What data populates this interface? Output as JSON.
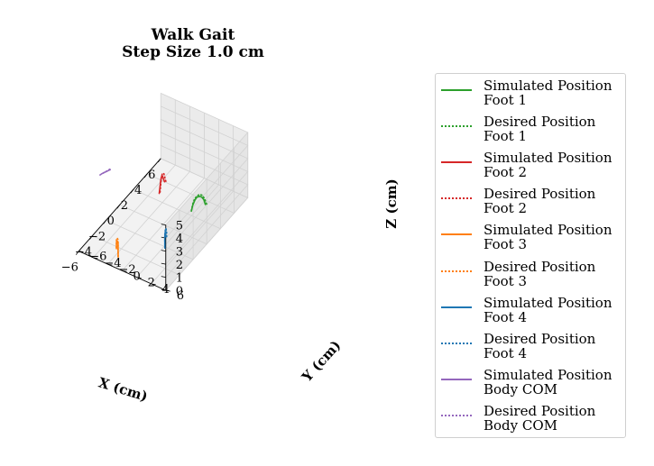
{
  "chart_data": {
    "type": "line",
    "projection": "3d",
    "title": "Walk Gait\nStep Size 1.0 cm",
    "title_lines": [
      "Walk Gait",
      "Step Size 1.0 cm"
    ],
    "xlabel": "X (cm)",
    "ylabel": "Y (cm)",
    "zlabel": "Z (cm)",
    "xlim": [
      -6,
      6
    ],
    "ylim": [
      -6,
      6
    ],
    "zlim": [
      0,
      5
    ],
    "xticks": [
      "−6",
      "−4",
      "−2",
      "0",
      "2",
      "4",
      "6"
    ],
    "yticks": [
      "−6",
      "−4",
      "−2",
      "0",
      "2",
      "4",
      "6"
    ],
    "zticks": [
      "0",
      "1",
      "2",
      "3",
      "4",
      "5"
    ],
    "grid": true,
    "legend_position": "right",
    "series": [
      {
        "name": "Simulated Position\nFoot 1",
        "color": "#2ca02c",
        "style": "solid",
        "x": [
          3.6,
          3.5,
          3.3,
          3.1,
          2.9,
          2.7,
          2.5,
          2.4
        ],
        "y": [
          2.4,
          2.3,
          2.2,
          2.1,
          1.9,
          1.8,
          1.7,
          1.6
        ],
        "z": [
          0.0,
          0.4,
          0.7,
          0.85,
          0.85,
          0.7,
          0.4,
          0.0
        ]
      },
      {
        "name": "Desired Position\nFoot 1",
        "color": "#2ca02c",
        "style": "dotted",
        "x": [
          3.7,
          3.5,
          3.3,
          3.1,
          2.9,
          2.7,
          2.5,
          2.4
        ],
        "y": [
          2.5,
          2.4,
          2.3,
          2.1,
          2.0,
          1.8,
          1.7,
          1.6
        ],
        "z": [
          0.0,
          0.5,
          0.85,
          1.0,
          1.0,
          0.85,
          0.5,
          0.0
        ]
      },
      {
        "name": "Simulated Position\nFoot 2",
        "color": "#d62728",
        "style": "solid",
        "x": [
          4.0,
          3.8,
          3.6,
          3.4,
          3.2,
          3.0,
          2.8,
          2.7
        ],
        "y": [
          -3.6,
          -3.6,
          -3.5,
          -3.4,
          -3.3,
          -3.2,
          -3.1,
          -3.1
        ],
        "z": [
          0.0,
          0.4,
          0.7,
          0.85,
          0.85,
          0.7,
          0.4,
          0.0
        ]
      },
      {
        "name": "Desired Position\nFoot 2",
        "color": "#d62728",
        "style": "dotted",
        "x": [
          4.1,
          3.9,
          3.7,
          3.5,
          3.3,
          3.1,
          2.9,
          2.7
        ],
        "y": [
          -3.5,
          -3.5,
          -3.4,
          -3.4,
          -3.3,
          -3.2,
          -3.1,
          -3.0
        ],
        "z": [
          0.0,
          0.5,
          0.85,
          1.0,
          1.0,
          0.85,
          0.5,
          0.0
        ]
      },
      {
        "name": "Simulated Position\nFoot 3",
        "color": "#ff7f0e",
        "style": "solid",
        "x": [
          -4.2,
          -4.3,
          -4.4,
          -4.5,
          -4.6,
          -4.7,
          -4.8,
          -4.9
        ],
        "y": [
          -2.5,
          -2.4,
          -2.3,
          -2.1,
          -1.9,
          -1.8,
          -1.7,
          -1.6
        ],
        "z": [
          0.0,
          0.4,
          0.7,
          0.85,
          0.85,
          0.7,
          0.4,
          0.0
        ]
      },
      {
        "name": "Desired Position\nFoot 3",
        "color": "#ff7f0e",
        "style": "dotted",
        "x": [
          -4.1,
          -4.2,
          -4.3,
          -4.4,
          -4.5,
          -4.7,
          -4.8,
          -4.9
        ],
        "y": [
          -2.6,
          -2.5,
          -2.4,
          -2.2,
          -2.0,
          -1.8,
          -1.7,
          -1.6
        ],
        "z": [
          0.0,
          0.5,
          0.85,
          1.0,
          1.0,
          0.85,
          0.5,
          0.0
        ]
      },
      {
        "name": "Simulated Position\nFoot 4",
        "color": "#1f77b4",
        "style": "solid",
        "x": [
          -1.1,
          -1.2,
          -1.3,
          -1.5,
          -1.7,
          -1.9,
          -2.0,
          -2.1
        ],
        "y": [
          1.3,
          1.4,
          1.5,
          1.7,
          1.9,
          2.0,
          2.1,
          2.2
        ],
        "z": [
          0.0,
          0.4,
          0.7,
          0.85,
          0.85,
          0.7,
          0.4,
          0.0
        ]
      },
      {
        "name": "Desired Position\nFoot 4",
        "color": "#1f77b4",
        "style": "dotted",
        "x": [
          -1.0,
          -1.1,
          -1.3,
          -1.5,
          -1.7,
          -1.9,
          -2.0,
          -2.2
        ],
        "y": [
          1.4,
          1.5,
          1.6,
          1.7,
          1.9,
          2.0,
          2.1,
          2.3
        ],
        "z": [
          0.0,
          0.5,
          0.85,
          1.0,
          1.0,
          0.85,
          0.5,
          0.0
        ]
      },
      {
        "name": "Simulated Position\nBody COM",
        "color": "#9467bd",
        "style": "solid",
        "x": [
          -3.1,
          -2.95,
          -2.8,
          -2.65,
          -2.5,
          -2.35
        ],
        "y": [
          -5.6,
          -5.5,
          -5.4,
          -5.3,
          -5.2,
          -5.1
        ],
        "z": [
          4.3,
          4.3,
          4.3,
          4.3,
          4.3,
          4.3
        ]
      },
      {
        "name": "Desired Position\nBody COM",
        "color": "#9467bd",
        "style": "dotted",
        "x": [
          -3.2,
          -3.0,
          -2.8,
          -2.6,
          -2.4,
          -2.2
        ],
        "y": [
          -5.7,
          -5.6,
          -5.5,
          -5.4,
          -5.3,
          -5.2
        ],
        "z": [
          4.25,
          4.25,
          4.25,
          4.25,
          4.25,
          4.25
        ]
      }
    ]
  }
}
